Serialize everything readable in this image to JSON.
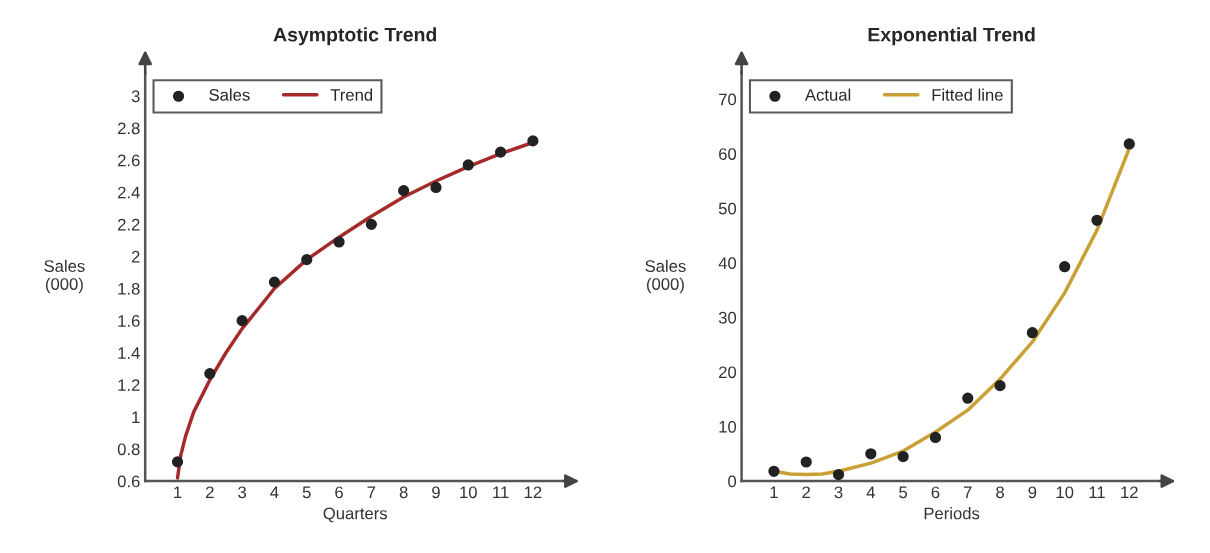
{
  "chart_data": [
    {
      "type": "scatter",
      "title": "Asymptotic Trend",
      "xlabel": "Quarters",
      "ylabel": "Sales\n(000)",
      "x": [
        1,
        2,
        3,
        4,
        5,
        6,
        7,
        8,
        9,
        10,
        11,
        12
      ],
      "xlim": [
        0,
        13
      ],
      "xticks": [
        1,
        2,
        3,
        4,
        5,
        6,
        7,
        8,
        9,
        10,
        11,
        12
      ],
      "ylim": [
        0.6,
        3.15
      ],
      "yticks": [
        0.6,
        0.8,
        1,
        1.2,
        1.4,
        1.6,
        1.8,
        2,
        2.2,
        2.4,
        2.6,
        2.8,
        3
      ],
      "grid": false,
      "legend": "top left",
      "series": [
        {
          "name": "Sales",
          "marker": "circle",
          "color": "#222222",
          "values": [
            0.72,
            1.27,
            1.6,
            1.84,
            1.98,
            2.09,
            2.2,
            2.41,
            2.43,
            2.57,
            2.65,
            2.72
          ]
        },
        {
          "name": "Trend",
          "type": "line",
          "line_style": "solid",
          "color": "#a52a2a",
          "x": [
            1,
            1.1,
            1.25,
            1.5,
            2,
            2.5,
            3,
            4,
            5,
            6,
            7,
            8,
            9,
            10,
            11,
            12
          ],
          "values": [
            0.62,
            0.76,
            0.88,
            1.03,
            1.23,
            1.4,
            1.55,
            1.8,
            1.98,
            2.12,
            2.25,
            2.37,
            2.47,
            2.56,
            2.64,
            2.71
          ]
        }
      ]
    },
    {
      "type": "scatter",
      "title": "Exponential Trend",
      "xlabel": "Periods",
      "ylabel": "Sales\n(000)",
      "x": [
        1,
        2,
        3,
        4,
        5,
        6,
        7,
        8,
        9,
        10,
        11,
        12
      ],
      "xlim": [
        0,
        13
      ],
      "xticks": [
        1,
        2,
        3,
        4,
        5,
        6,
        7,
        8,
        9,
        10,
        11,
        12
      ],
      "ylim": [
        0,
        75
      ],
      "yticks": [
        0,
        10,
        20,
        30,
        40,
        50,
        60,
        70
      ],
      "grid": false,
      "legend": "top left",
      "series": [
        {
          "name": "Actual",
          "marker": "circle",
          "color": "#222222",
          "values": [
            1.8,
            3.5,
            1.2,
            5,
            4.5,
            8,
            15.2,
            17.5,
            27.2,
            39.3,
            47.8,
            61.8
          ]
        },
        {
          "name": "Fitted line",
          "type": "line",
          "line_style": "solid",
          "color": "#c8a035",
          "x": [
            1,
            1.5,
            2,
            2.5,
            3,
            4,
            5,
            6,
            7,
            8,
            9,
            10,
            11,
            12
          ],
          "values": [
            1.8,
            1.3,
            1.2,
            1.3,
            1.8,
            3.3,
            5.5,
            9,
            13,
            18.7,
            25.5,
            34.5,
            46,
            61
          ]
        }
      ]
    }
  ]
}
